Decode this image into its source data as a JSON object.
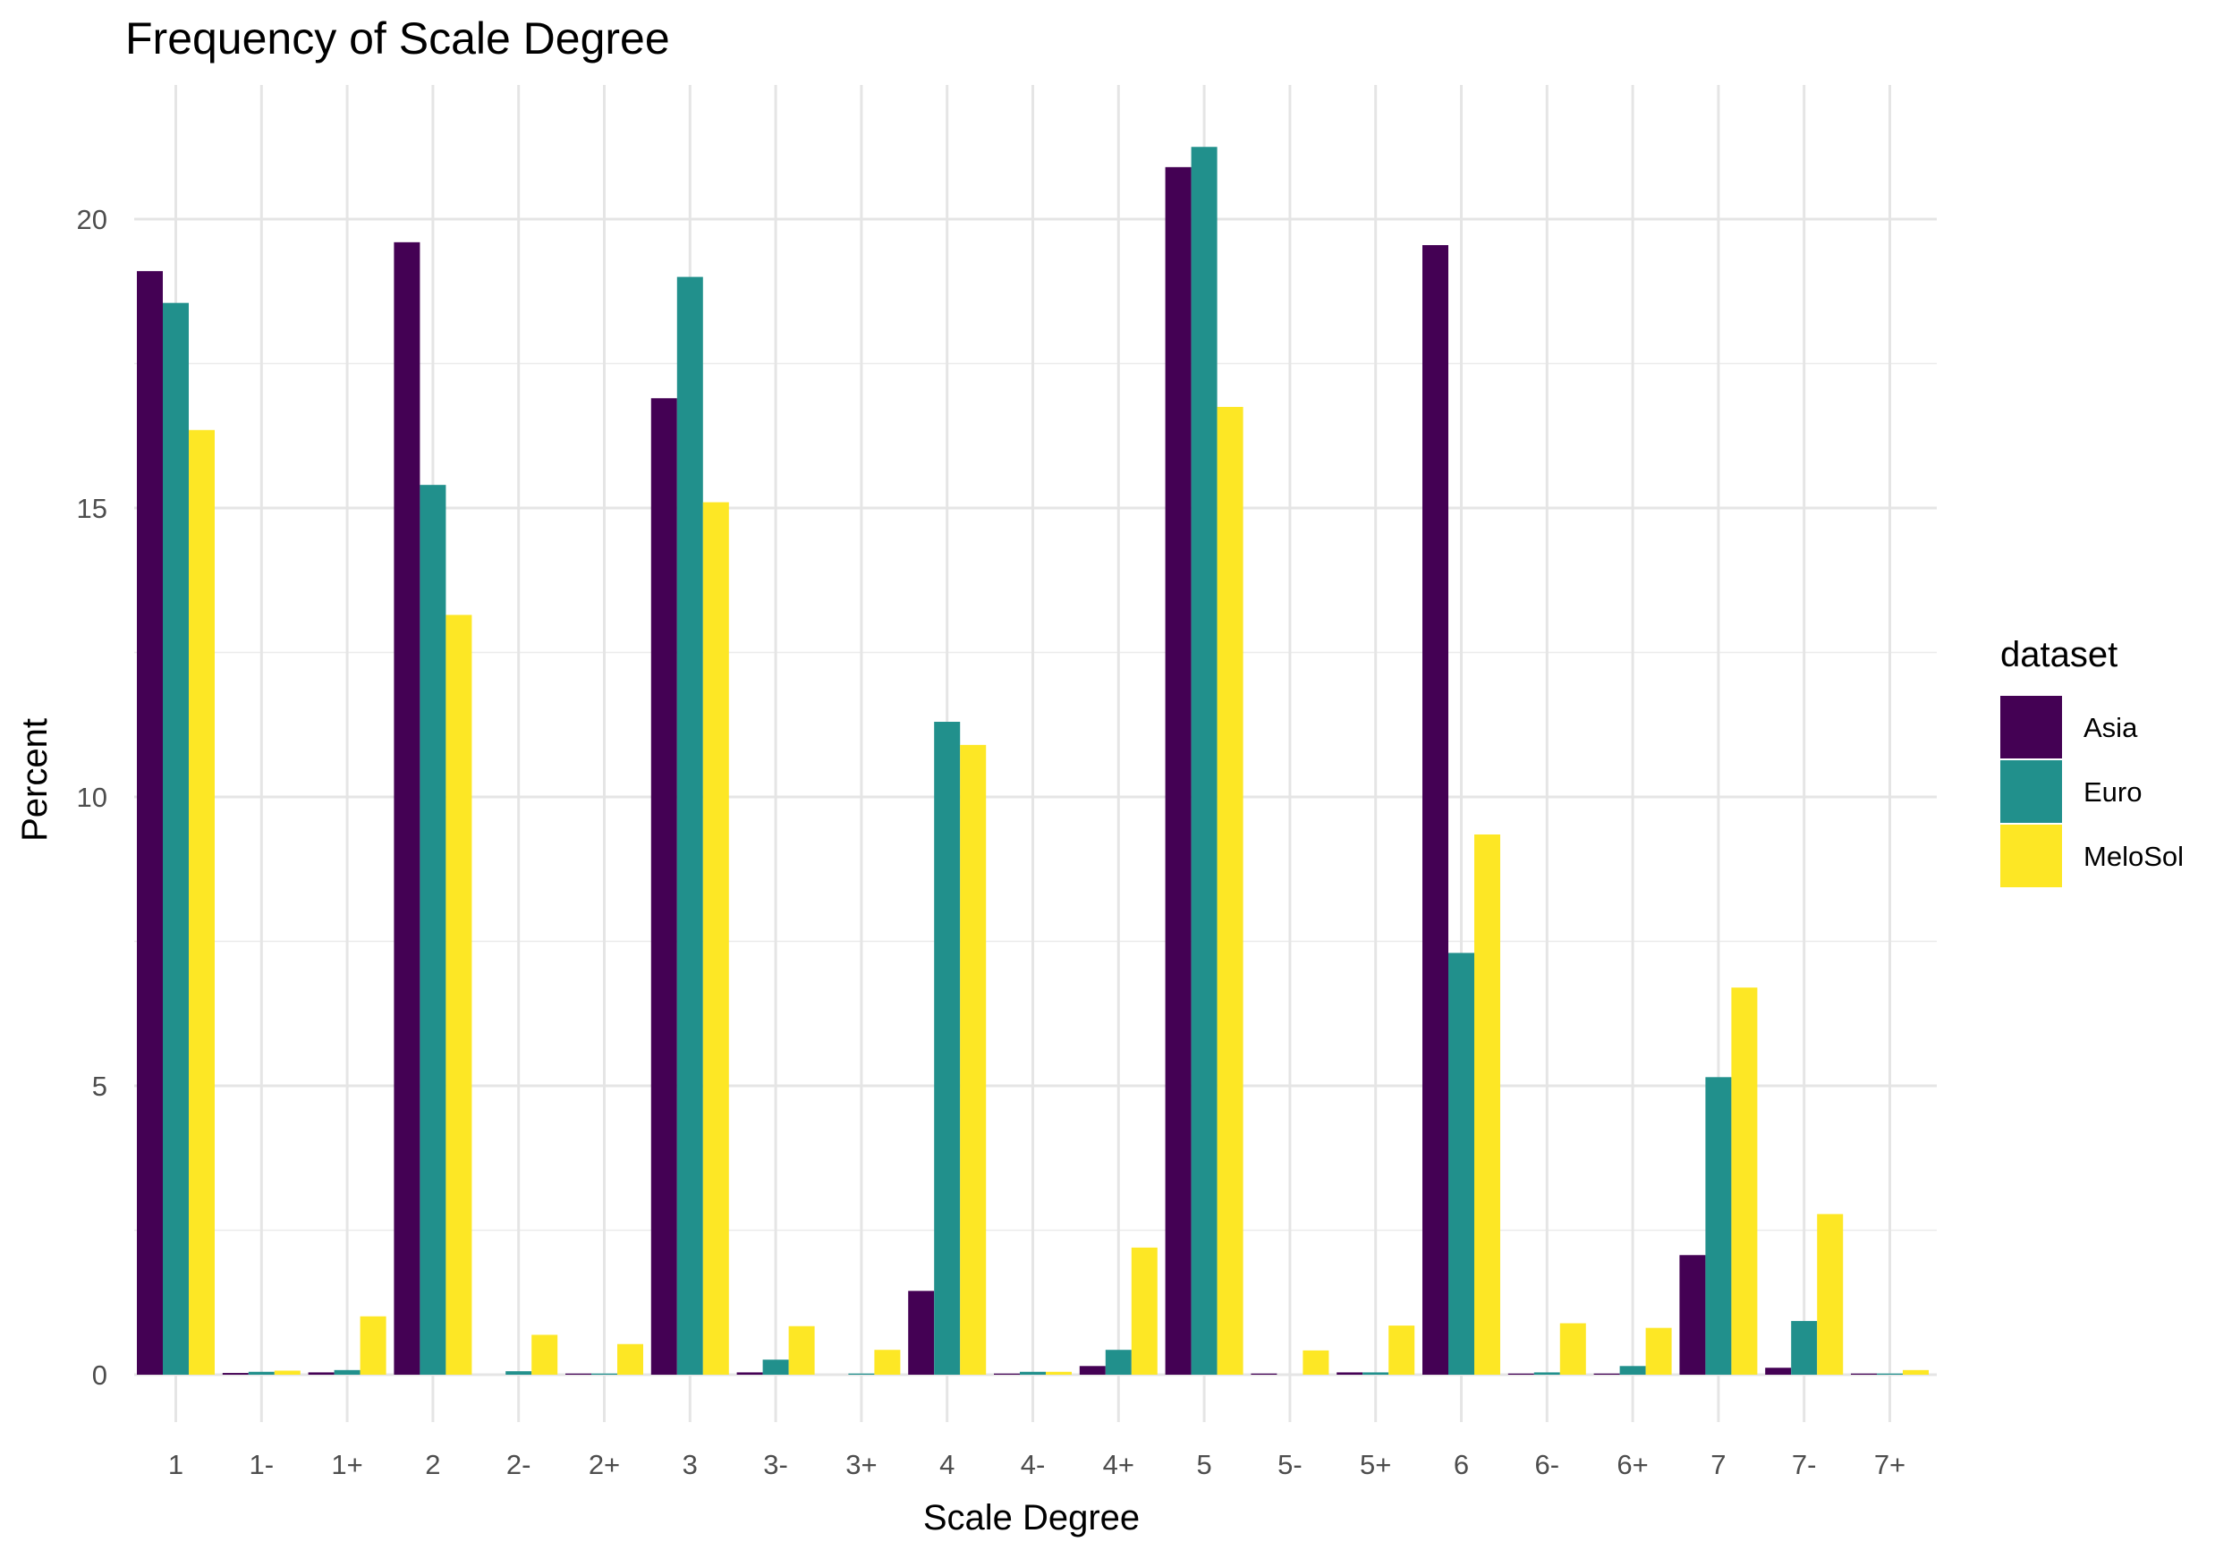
{
  "chart_data": {
    "type": "bar",
    "title": "Frequency of Scale Degree",
    "xlabel": "Scale Degree",
    "ylabel": "Percent",
    "categories": [
      "1",
      "1-",
      "1+",
      "2",
      "2-",
      "2+",
      "3",
      "3-",
      "3+",
      "4",
      "4-",
      "4+",
      "5",
      "5-",
      "5+",
      "6",
      "6-",
      "6+",
      "7",
      "7-",
      "7+"
    ],
    "ylim": [
      0,
      22.2
    ],
    "yticks": [
      0,
      5,
      10,
      15,
      20
    ],
    "grid": true,
    "legend": {
      "title": "dataset",
      "position": "right"
    },
    "series": [
      {
        "name": "Asia",
        "color": "#440154",
        "values": [
          19.1,
          0.03,
          0.04,
          19.6,
          0.0,
          0.02,
          16.9,
          0.04,
          0.0,
          1.45,
          0.02,
          0.15,
          20.9,
          0.02,
          0.04,
          19.55,
          0.02,
          0.02,
          2.07,
          0.12,
          0.02
        ]
      },
      {
        "name": "Euro",
        "color": "#21908C",
        "values": [
          18.55,
          0.05,
          0.08,
          15.4,
          0.06,
          0.02,
          19.0,
          0.26,
          0.02,
          11.3,
          0.05,
          0.43,
          21.25,
          0.0,
          0.04,
          7.3,
          0.04,
          0.15,
          5.15,
          0.93,
          0.02
        ]
      },
      {
        "name": "MeloSol",
        "color": "#FDE725",
        "values": [
          16.35,
          0.07,
          1.01,
          13.15,
          0.69,
          0.53,
          15.1,
          0.84,
          0.43,
          10.9,
          0.05,
          2.2,
          16.75,
          0.42,
          0.85,
          9.35,
          0.89,
          0.81,
          6.7,
          2.78,
          0.08
        ]
      }
    ]
  }
}
